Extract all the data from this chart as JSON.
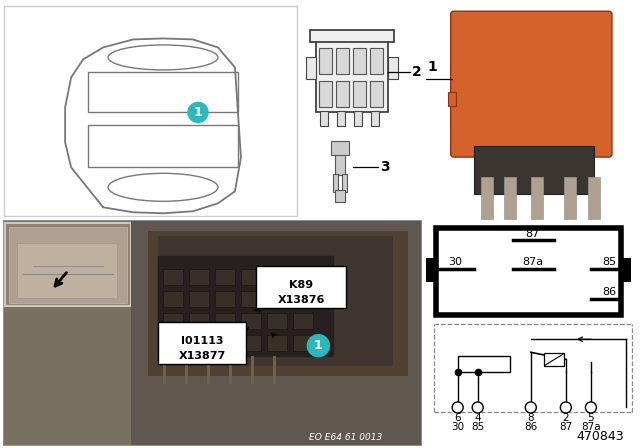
{
  "bg_color": "#ffffff",
  "part_number": "470843",
  "eo_number": "EO E64 61 0013",
  "relay_orange": "#d4622a",
  "teal_color": "#2ab8bc",
  "gray_border": "#aaaaaa",
  "car_line_color": "#777777",
  "connector_line": "#555555",
  "photo_bg": "#787060",
  "photo_bg2": "#605850",
  "inset_bg": "#a09080",
  "fusebox_bg": "#504840",
  "fuse_color": "#383028",
  "label_k89_line1": "K89",
  "label_k89_line2": "X13876",
  "label_i01_line1": "I01113",
  "label_i01_line2": "X13877",
  "pin_row1": [
    "6",
    "4",
    "8",
    "2",
    "5"
  ],
  "pin_row2": [
    "30",
    "85",
    "86",
    "87",
    "87a"
  ],
  "pinout_87": "87",
  "pinout_30": "30",
  "pinout_87a": "87a",
  "pinout_85": "85",
  "pinout_86": "86",
  "item1": "1",
  "item2": "2",
  "item3": "3"
}
